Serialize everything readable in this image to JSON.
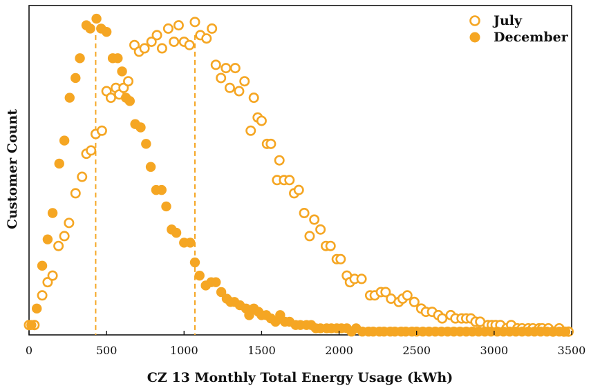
{
  "chart_data": {
    "type": "scatter",
    "xlabel": "CZ 13 Monthly Total Energy Usage (kWh)",
    "ylabel": "Customer Count",
    "xlim": [
      0,
      3500
    ],
    "ylim": [
      0,
      100
    ],
    "x_ticks": [
      "0",
      "500",
      "1000",
      "1500",
      "2000",
      "2500",
      "3000",
      "3500"
    ],
    "y_tick_labels_shown": false,
    "grid": false,
    "legend_position": "top-right",
    "reference_lines_x": [
      430,
      1070
    ],
    "colors": {
      "marker": "#F5A623",
      "axis": "#111111"
    },
    "series": [
      {
        "name": "July",
        "marker": "hollow-circle",
        "points": [
          [
            0,
            3
          ],
          [
            35,
            3
          ],
          [
            85,
            12
          ],
          [
            120,
            16
          ],
          [
            152,
            18
          ],
          [
            190,
            27
          ],
          [
            228,
            30
          ],
          [
            258,
            34
          ],
          [
            300,
            43
          ],
          [
            342,
            48
          ],
          [
            370,
            55
          ],
          [
            400,
            56
          ],
          [
            430,
            61
          ],
          [
            470,
            62
          ],
          [
            500,
            74
          ],
          [
            528,
            72
          ],
          [
            560,
            75
          ],
          [
            582,
            73
          ],
          [
            610,
            75
          ],
          [
            640,
            77
          ],
          [
            680,
            88
          ],
          [
            710,
            86
          ],
          [
            745,
            87
          ],
          [
            790,
            89
          ],
          [
            825,
            91
          ],
          [
            858,
            87
          ],
          [
            898,
            93
          ],
          [
            935,
            89
          ],
          [
            965,
            94
          ],
          [
            1000,
            89
          ],
          [
            1035,
            88
          ],
          [
            1070,
            95
          ],
          [
            1105,
            91
          ],
          [
            1145,
            90
          ],
          [
            1180,
            93
          ],
          [
            1205,
            82
          ],
          [
            1238,
            78
          ],
          [
            1270,
            81
          ],
          [
            1295,
            75
          ],
          [
            1330,
            81
          ],
          [
            1355,
            74
          ],
          [
            1390,
            77
          ],
          [
            1430,
            62
          ],
          [
            1450,
            72
          ],
          [
            1475,
            66
          ],
          [
            1500,
            65
          ],
          [
            1535,
            58
          ],
          [
            1560,
            58
          ],
          [
            1600,
            47
          ],
          [
            1615,
            53
          ],
          [
            1645,
            47
          ],
          [
            1680,
            47
          ],
          [
            1710,
            43
          ],
          [
            1740,
            44
          ],
          [
            1775,
            37
          ],
          [
            1810,
            30
          ],
          [
            1840,
            35
          ],
          [
            1880,
            32
          ],
          [
            1915,
            27
          ],
          [
            1945,
            27
          ],
          [
            1985,
            23
          ],
          [
            2010,
            23
          ],
          [
            2050,
            18
          ],
          [
            2070,
            16
          ],
          [
            2100,
            17
          ],
          [
            2145,
            17
          ],
          [
            2200,
            12
          ],
          [
            2230,
            12
          ],
          [
            2270,
            13
          ],
          [
            2300,
            13
          ],
          [
            2335,
            11
          ],
          [
            2385,
            10
          ],
          [
            2410,
            11
          ],
          [
            2440,
            12
          ],
          [
            2485,
            10
          ],
          [
            2530,
            8
          ],
          [
            2560,
            7
          ],
          [
            2600,
            7
          ],
          [
            2640,
            6
          ],
          [
            2665,
            5
          ],
          [
            2720,
            6
          ],
          [
            2750,
            5
          ],
          [
            2790,
            5
          ],
          [
            2820,
            5
          ],
          [
            2850,
            5
          ],
          [
            2880,
            4
          ],
          [
            2910,
            4
          ],
          [
            2960,
            3
          ],
          [
            2985,
            3
          ],
          [
            3010,
            3
          ],
          [
            3040,
            3
          ],
          [
            3080,
            2
          ],
          [
            3110,
            3
          ],
          [
            3150,
            2
          ],
          [
            3180,
            2
          ],
          [
            3220,
            2
          ],
          [
            3250,
            2
          ],
          [
            3290,
            2
          ],
          [
            3310,
            2
          ],
          [
            3350,
            2
          ],
          [
            3380,
            1
          ],
          [
            3420,
            2
          ],
          [
            3450,
            1
          ],
          [
            3480,
            1
          ]
        ]
      },
      {
        "name": "December",
        "marker": "filled-circle",
        "points": [
          [
            15,
            3
          ],
          [
            50,
            8
          ],
          [
            85,
            21
          ],
          [
            120,
            29
          ],
          [
            152,
            37
          ],
          [
            195,
            52
          ],
          [
            228,
            59
          ],
          [
            262,
            72
          ],
          [
            300,
            78
          ],
          [
            328,
            84
          ],
          [
            370,
            94
          ],
          [
            395,
            93
          ],
          [
            435,
            96
          ],
          [
            465,
            93
          ],
          [
            500,
            92
          ],
          [
            540,
            84
          ],
          [
            572,
            84
          ],
          [
            600,
            80
          ],
          [
            625,
            72
          ],
          [
            650,
            71
          ],
          [
            685,
            64
          ],
          [
            720,
            63
          ],
          [
            755,
            58
          ],
          [
            785,
            51
          ],
          [
            820,
            44
          ],
          [
            855,
            44
          ],
          [
            885,
            39
          ],
          [
            920,
            32
          ],
          [
            950,
            31
          ],
          [
            1000,
            28
          ],
          [
            1040,
            28
          ],
          [
            1070,
            22
          ],
          [
            1100,
            18
          ],
          [
            1140,
            15
          ],
          [
            1175,
            16
          ],
          [
            1205,
            16
          ],
          [
            1240,
            13
          ],
          [
            1275,
            11
          ],
          [
            1300,
            10
          ],
          [
            1325,
            10
          ],
          [
            1360,
            9
          ],
          [
            1400,
            8
          ],
          [
            1420,
            6
          ],
          [
            1450,
            8
          ],
          [
            1480,
            7
          ],
          [
            1500,
            6
          ],
          [
            1530,
            6
          ],
          [
            1560,
            5
          ],
          [
            1590,
            4
          ],
          [
            1620,
            6
          ],
          [
            1650,
            4
          ],
          [
            1680,
            4
          ],
          [
            1720,
            3
          ],
          [
            1750,
            3
          ],
          [
            1790,
            3
          ],
          [
            1820,
            3
          ],
          [
            1850,
            2
          ],
          [
            1880,
            2
          ],
          [
            1920,
            2
          ],
          [
            1950,
            2
          ],
          [
            1985,
            2
          ],
          [
            2015,
            2
          ],
          [
            2050,
            2
          ],
          [
            2080,
            1
          ],
          [
            2110,
            2
          ],
          [
            2150,
            1
          ],
          [
            2190,
            1
          ],
          [
            2220,
            1
          ],
          [
            2260,
            1
          ],
          [
            2290,
            1
          ],
          [
            2330,
            1
          ],
          [
            2360,
            1
          ],
          [
            2400,
            1
          ],
          [
            2430,
            1
          ],
          [
            2470,
            1
          ],
          [
            2500,
            1
          ],
          [
            2540,
            1
          ],
          [
            2580,
            1
          ],
          [
            2620,
            1
          ],
          [
            2660,
            1
          ],
          [
            2700,
            1
          ],
          [
            2740,
            1
          ],
          [
            2780,
            1
          ],
          [
            2820,
            1
          ],
          [
            2860,
            1
          ],
          [
            2900,
            1
          ],
          [
            2940,
            1
          ],
          [
            2980,
            1
          ],
          [
            3020,
            1
          ],
          [
            3060,
            1
          ],
          [
            3100,
            1
          ],
          [
            3140,
            1
          ],
          [
            3180,
            1
          ],
          [
            3220,
            1
          ],
          [
            3260,
            1
          ],
          [
            3300,
            1
          ],
          [
            3340,
            1
          ],
          [
            3380,
            1
          ],
          [
            3420,
            1
          ],
          [
            3460,
            1
          ]
        ]
      }
    ]
  }
}
